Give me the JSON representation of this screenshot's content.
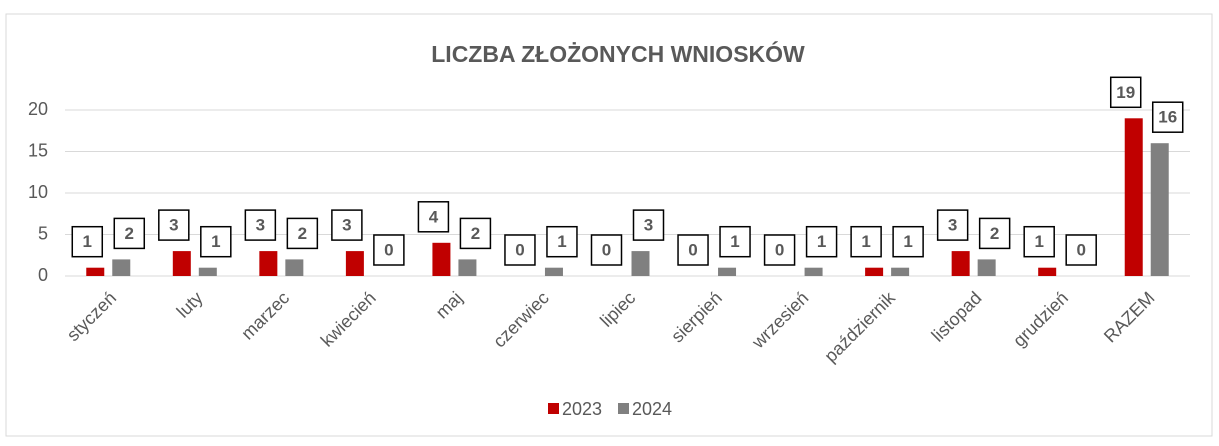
{
  "chart_data": {
    "type": "bar",
    "title": "LICZBA ZŁOŻONYCH WNIOSKÓW",
    "categories": [
      "styczeń",
      "luty",
      "marzec",
      "kwiecień",
      "maj",
      "czerwiec",
      "lipiec",
      "sierpień",
      "wrzesień",
      "październik",
      "listopad",
      "grudzień",
      "RAZEM"
    ],
    "series": [
      {
        "name": "2023",
        "color": "#c00000",
        "values": [
          1,
          3,
          3,
          3,
          4,
          0,
          0,
          0,
          0,
          1,
          3,
          1,
          19
        ]
      },
      {
        "name": "2024",
        "color": "#808080",
        "values": [
          2,
          1,
          2,
          0,
          2,
          1,
          3,
          1,
          1,
          1,
          2,
          0,
          16
        ]
      }
    ],
    "ylim": [
      0,
      20
    ],
    "yticks": [
      0,
      5,
      10,
      15,
      20
    ],
    "grid": true,
    "legend": "bottom"
  }
}
